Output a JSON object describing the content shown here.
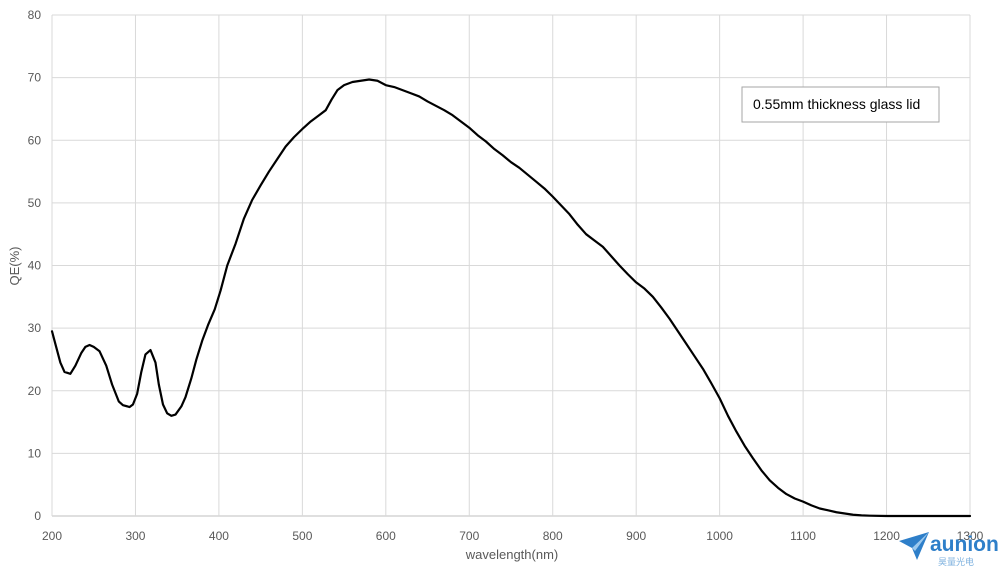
{
  "chart_data": {
    "type": "line",
    "title": "",
    "xlabel": "wavelength(nm)",
    "ylabel": "QE(%)",
    "xlim": [
      200,
      1300
    ],
    "ylim": [
      0,
      80
    ],
    "x_ticks": [
      200,
      300,
      400,
      500,
      600,
      700,
      800,
      900,
      1000,
      1100,
      1200,
      1300
    ],
    "y_ticks": [
      0,
      10,
      20,
      30,
      40,
      50,
      60,
      70,
      80
    ],
    "grid": true,
    "legend": "none",
    "annotation": "0.55mm thickness glass lid",
    "series": [
      {
        "color": "#000000",
        "points": [
          [
            200,
            29.5
          ],
          [
            205,
            27.0
          ],
          [
            210,
            24.5
          ],
          [
            215,
            23.0
          ],
          [
            222,
            22.7
          ],
          [
            228,
            24.0
          ],
          [
            235,
            26.0
          ],
          [
            240,
            27.0
          ],
          [
            245,
            27.3
          ],
          [
            250,
            27.0
          ],
          [
            257,
            26.3
          ],
          [
            265,
            24.0
          ],
          [
            272,
            21.0
          ],
          [
            280,
            18.3
          ],
          [
            285,
            17.7
          ],
          [
            293,
            17.4
          ],
          [
            297,
            17.8
          ],
          [
            302,
            19.5
          ],
          [
            307,
            23.0
          ],
          [
            312,
            25.8
          ],
          [
            318,
            26.5
          ],
          [
            324,
            24.5
          ],
          [
            328,
            21.0
          ],
          [
            333,
            17.8
          ],
          [
            338,
            16.4
          ],
          [
            343,
            16.0
          ],
          [
            348,
            16.2
          ],
          [
            355,
            17.5
          ],
          [
            360,
            19.0
          ],
          [
            367,
            22.0
          ],
          [
            373,
            25.0
          ],
          [
            380,
            28.0
          ],
          [
            387,
            30.5
          ],
          [
            395,
            33.0
          ],
          [
            402,
            36.0
          ],
          [
            410,
            40.0
          ],
          [
            420,
            43.5
          ],
          [
            430,
            47.5
          ],
          [
            440,
            50.5
          ],
          [
            450,
            52.8
          ],
          [
            460,
            55.0
          ],
          [
            470,
            57.0
          ],
          [
            480,
            59.0
          ],
          [
            490,
            60.5
          ],
          [
            500,
            61.8
          ],
          [
            510,
            63.0
          ],
          [
            520,
            64.0
          ],
          [
            528,
            64.8
          ],
          [
            535,
            66.5
          ],
          [
            542,
            68.0
          ],
          [
            550,
            68.8
          ],
          [
            560,
            69.3
          ],
          [
            570,
            69.5
          ],
          [
            580,
            69.7
          ],
          [
            590,
            69.5
          ],
          [
            600,
            68.8
          ],
          [
            610,
            68.5
          ],
          [
            620,
            68.0
          ],
          [
            630,
            67.5
          ],
          [
            640,
            67.0
          ],
          [
            650,
            66.2
          ],
          [
            660,
            65.5
          ],
          [
            670,
            64.8
          ],
          [
            680,
            64.0
          ],
          [
            690,
            63.0
          ],
          [
            700,
            62.0
          ],
          [
            710,
            60.8
          ],
          [
            720,
            59.8
          ],
          [
            730,
            58.6
          ],
          [
            740,
            57.6
          ],
          [
            750,
            56.5
          ],
          [
            760,
            55.6
          ],
          [
            770,
            54.5
          ],
          [
            780,
            53.4
          ],
          [
            790,
            52.3
          ],
          [
            800,
            51.0
          ],
          [
            810,
            49.6
          ],
          [
            820,
            48.2
          ],
          [
            830,
            46.5
          ],
          [
            840,
            45.0
          ],
          [
            850,
            44.0
          ],
          [
            860,
            43.0
          ],
          [
            870,
            41.5
          ],
          [
            880,
            40.0
          ],
          [
            890,
            38.6
          ],
          [
            900,
            37.3
          ],
          [
            910,
            36.3
          ],
          [
            920,
            35.0
          ],
          [
            930,
            33.3
          ],
          [
            940,
            31.5
          ],
          [
            950,
            29.5
          ],
          [
            960,
            27.5
          ],
          [
            970,
            25.5
          ],
          [
            980,
            23.5
          ],
          [
            990,
            21.2
          ],
          [
            1000,
            18.8
          ],
          [
            1010,
            16.0
          ],
          [
            1020,
            13.5
          ],
          [
            1030,
            11.2
          ],
          [
            1040,
            9.2
          ],
          [
            1050,
            7.3
          ],
          [
            1060,
            5.7
          ],
          [
            1070,
            4.5
          ],
          [
            1080,
            3.5
          ],
          [
            1090,
            2.8
          ],
          [
            1100,
            2.3
          ],
          [
            1110,
            1.7
          ],
          [
            1120,
            1.2
          ],
          [
            1130,
            0.9
          ],
          [
            1140,
            0.6
          ],
          [
            1150,
            0.4
          ],
          [
            1160,
            0.2
          ],
          [
            1170,
            0.1
          ],
          [
            1180,
            0.05
          ],
          [
            1200,
            0.0
          ],
          [
            1250,
            0.0
          ],
          [
            1300,
            0.0
          ]
        ]
      }
    ]
  },
  "watermark": {
    "logo_text": "aunion",
    "sub_text": "昊量光电",
    "logo_color": "#2e7fc9",
    "icon": "paper-plane-icon"
  }
}
